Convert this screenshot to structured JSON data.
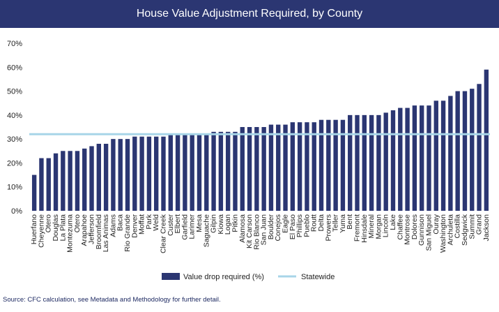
{
  "chart_data": {
    "type": "bar",
    "title": "House Value Adjustment Required, by County",
    "xlabel": "",
    "ylabel": "",
    "ylim": [
      0,
      70
    ],
    "yticks": [
      "0%",
      "10%",
      "20%",
      "30%",
      "40%",
      "50%",
      "60%",
      "70%"
    ],
    "grid": false,
    "legend_position": "bottom",
    "categories": [
      "Huerfano",
      "Cheyenne",
      "Otero",
      "Douglas",
      "La Plata",
      "Montezuma",
      "Otero",
      "Arapahoe",
      "Jefferson",
      "Broomfield",
      "Las Animas",
      "Adams",
      "Baca",
      "Rio Grande",
      "Denver",
      "Moffat",
      "Park",
      "Weld",
      "Clear Creek",
      "Custer",
      "Elbert",
      "Garfield",
      "Larimer",
      "Mesa",
      "Saguache",
      "Gilpin",
      "Kiowa",
      "Logan",
      "Pitkin",
      "Alamosa",
      "Kit Carson",
      "Rio Blanco",
      "San Juan",
      "Boulder",
      "Conejos",
      "Eagle",
      "El Paso",
      "Phillips",
      "Pueblo",
      "Routt",
      "Delta",
      "Prowers",
      "Teller",
      "Yuma",
      "Bent",
      "Fremont",
      "Hinsdale",
      "Mineral",
      "Morgan",
      "Lincoln",
      "Lake",
      "Chaffee",
      "Montrose",
      "Dolores",
      "Gunnison",
      "San Miguel",
      "Ouray",
      "Washington",
      "Archuleta",
      "Costilla",
      "Sedgwick",
      "Summit",
      "Grand",
      "Jackson"
    ],
    "series": [
      {
        "name": "Value drop required (%)",
        "color": "#2b3672",
        "values": [
          15,
          22,
          22,
          24,
          25,
          25,
          25,
          26,
          27,
          28,
          28,
          30,
          30,
          30,
          31,
          31,
          31,
          31,
          31,
          32,
          32,
          32,
          32,
          32,
          32,
          33,
          33,
          33,
          33,
          35,
          35,
          35,
          35,
          36,
          36,
          36,
          37,
          37,
          37,
          37,
          38,
          38,
          38,
          38,
          40,
          40,
          40,
          40,
          40,
          41,
          42,
          43,
          43,
          44,
          44,
          44,
          46,
          46,
          48,
          50,
          50,
          51,
          53,
          59
        ]
      }
    ],
    "reference_line": {
      "name": "Statewide",
      "value": 32,
      "color": "#a8d5e8"
    }
  },
  "source_note": "Source: CFC calculation, see Metadata and Methodology for further detail."
}
